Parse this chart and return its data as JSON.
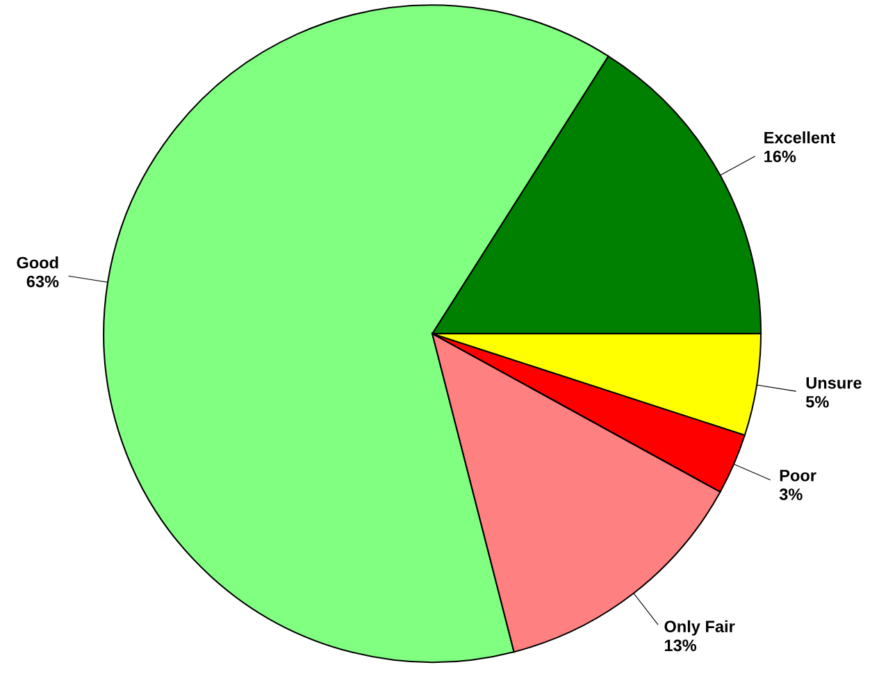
{
  "chart_data": {
    "type": "pie",
    "categories": [
      "Excellent",
      "Good",
      "Only Fair",
      "Poor",
      "Unsure"
    ],
    "values": [
      16,
      63,
      13,
      3,
      5
    ],
    "value_labels": [
      "16%",
      "63%",
      "13%",
      "3%",
      "5%"
    ],
    "colors": [
      "#008000",
      "#80ff80",
      "#ff8080",
      "#ff0000",
      "#ffff00"
    ]
  }
}
